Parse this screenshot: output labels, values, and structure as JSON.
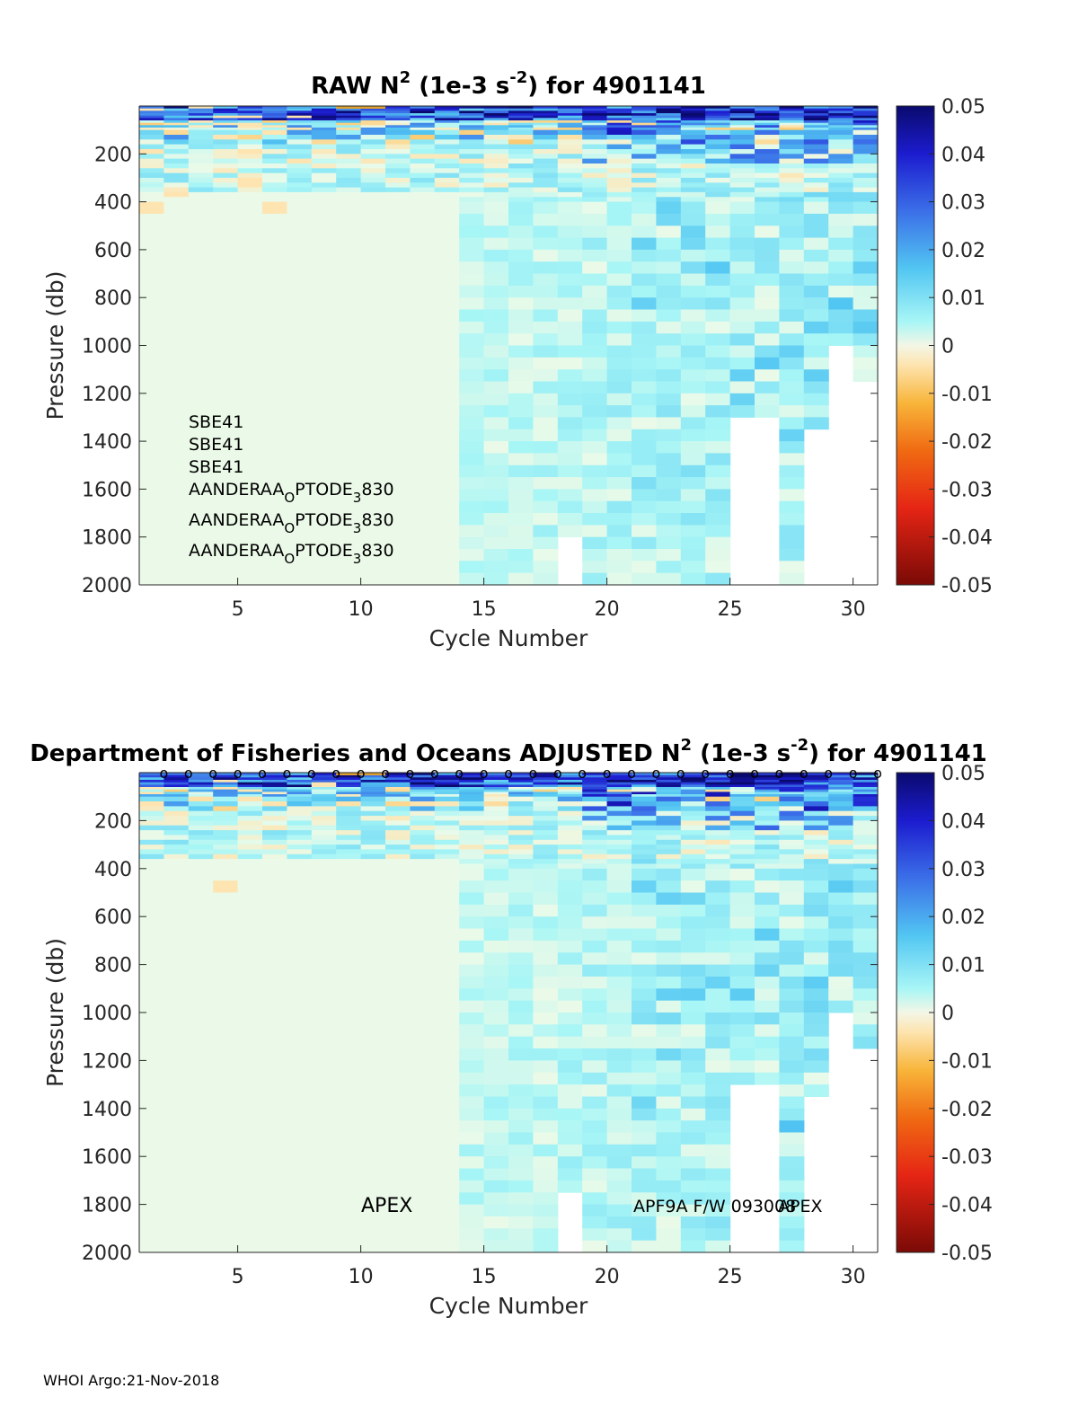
{
  "footer": "WHOI Argo:21-Nov-2018",
  "chart_data": [
    {
      "type": "heatmap",
      "title": {
        "main": "RAW N",
        "sup1": "2",
        "mid": " (1e-3 s",
        "sup2": "-2",
        "end": ") for 4901141"
      },
      "xlabel": "Cycle Number",
      "ylabel": "Pressure (db)",
      "xlim": [
        1,
        31
      ],
      "ylim": [
        0,
        2000
      ],
      "y_reversed": true,
      "xticks": [
        5,
        10,
        15,
        20,
        25,
        30
      ],
      "yticks": [
        200,
        400,
        600,
        800,
        1000,
        1200,
        1400,
        1600,
        1800,
        2000
      ],
      "colorbar": {
        "range": [
          -0.05,
          0.05
        ],
        "ticks": [
          "0.05",
          "0.04",
          "0.03",
          "0.02",
          "0.01",
          "0",
          "-0.01",
          "-0.02",
          "-0.03",
          "-0.04",
          "-0.05"
        ]
      },
      "annotations": [
        {
          "text": "SBE41"
        },
        {
          "text": "SBE41"
        },
        {
          "text": "SBE41"
        },
        {
          "base": "AANDERAA",
          "sub1": "O",
          "mid": "PTODE",
          "sub2": "3",
          "end": "830"
        },
        {
          "base": "AANDERAA",
          "sub1": "O",
          "mid": "PTODE",
          "sub2": "3",
          "end": "830"
        },
        {
          "base": "AANDERAA",
          "sub1": "O",
          "mid": "PTODE",
          "sub2": "3",
          "end": "830"
        }
      ],
      "profile_max_depth": {
        "18": 1800,
        "25": 1300,
        "26": 1300,
        "28": 1350,
        "29": 1000,
        "30": 1150
      }
    },
    {
      "type": "heatmap",
      "title": {
        "main": "Department of Fisheries and Oceans  ADJUSTED N",
        "sup1": "2",
        "mid": " (1e-3 s",
        "sup2": "-2",
        "end": ") for 4901141"
      },
      "xlabel": "Cycle Number",
      "ylabel": "Pressure (db)",
      "xlim": [
        1,
        31
      ],
      "ylim": [
        0,
        2000
      ],
      "y_reversed": true,
      "xticks": [
        5,
        10,
        15,
        20,
        25,
        30
      ],
      "yticks": [
        200,
        400,
        600,
        800,
        1000,
        1200,
        1400,
        1600,
        1800,
        2000
      ],
      "colorbar": {
        "range": [
          -0.05,
          0.05
        ],
        "ticks": [
          "0.05",
          "0.04",
          "0.03",
          "0.02",
          "0.01",
          "0",
          "-0.01",
          "-0.02",
          "-0.03",
          "-0.04",
          "-0.05"
        ]
      },
      "cycle_marker": "o",
      "annotations": [
        {
          "text": "APEX"
        },
        {
          "text": "APF9A F/W 093008"
        },
        {
          "text": "APEX"
        }
      ],
      "profile_max_depth": {
        "18": 1750,
        "25": 1300,
        "26": 1300,
        "28": 1350,
        "29": 1000,
        "30": 1150
      }
    }
  ]
}
